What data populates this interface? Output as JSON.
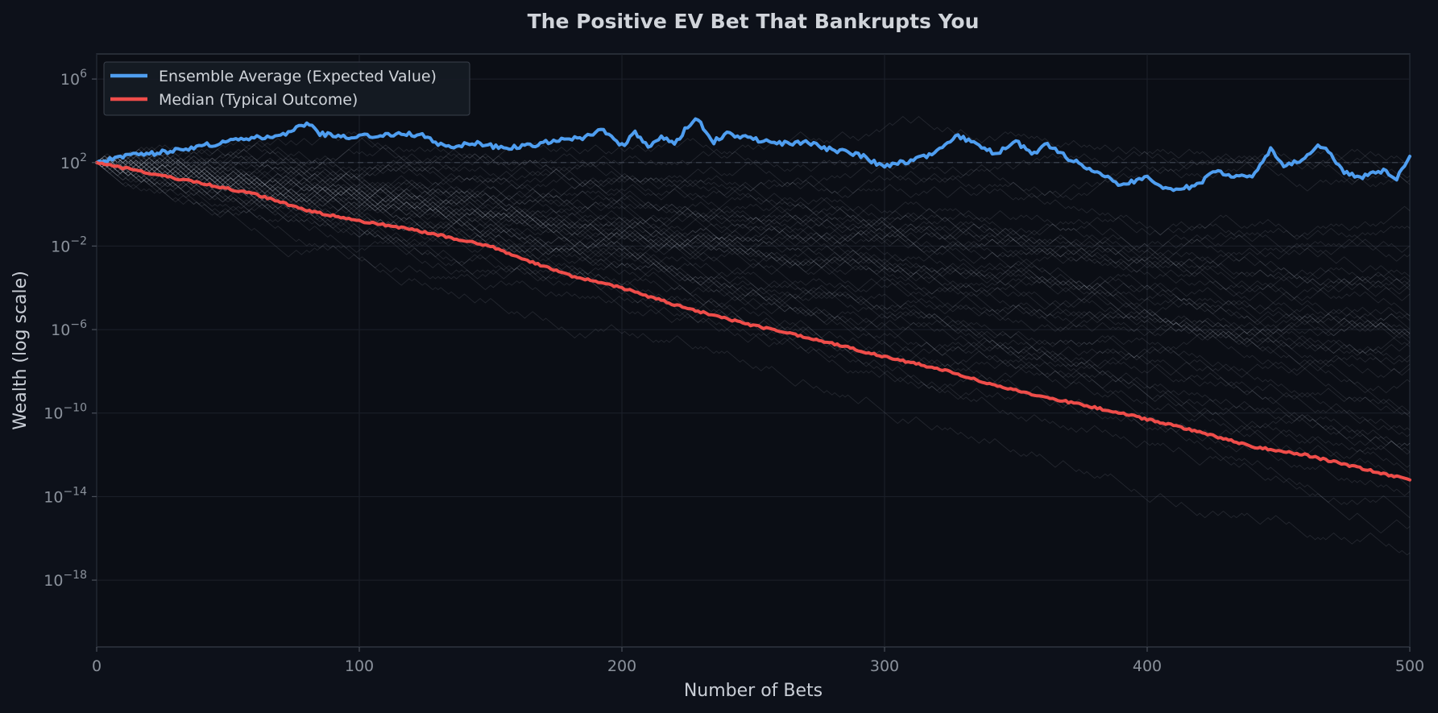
{
  "chart_data": {
    "type": "line",
    "title": "The Positive EV Bet That Bankrupts You",
    "xlabel": "Number of Bets",
    "ylabel": "Wealth (log scale)",
    "xlim": [
      0,
      500
    ],
    "ylim_log10": [
      -21.2,
      7.2
    ],
    "y_scale": "log",
    "x_ticks": [
      0,
      100,
      200,
      300,
      400,
      500
    ],
    "y_ticks": [
      {
        "base": "10",
        "exp": "6",
        "value": 1000000.0
      },
      {
        "base": "10",
        "exp": "2",
        "value": 100.0
      },
      {
        "base": "10",
        "exp": "−2",
        "value": 0.01
      },
      {
        "base": "10",
        "exp": "−6",
        "value": 1e-06
      },
      {
        "base": "10",
        "exp": "−10",
        "value": 1e-10
      },
      {
        "base": "10",
        "exp": "−14",
        "value": 1e-14
      },
      {
        "base": "10",
        "exp": "−18",
        "value": 1e-18
      }
    ],
    "grid": true,
    "legend_position": "top-left",
    "reference_line": {
      "y": 100,
      "style": "dashed"
    },
    "background_paths": {
      "count": 48,
      "start_wealth": 100,
      "steps": 500,
      "color": "#a0a6b0"
    },
    "series": [
      {
        "name": "Ensemble Average (Expected Value)",
        "color": "#4f9ef0",
        "points_log10": [
          [
            0,
            2.0
          ],
          [
            10,
            2.3
          ],
          [
            20,
            2.4
          ],
          [
            30,
            2.6
          ],
          [
            40,
            2.8
          ],
          [
            50,
            3.0
          ],
          [
            60,
            3.2
          ],
          [
            70,
            3.3
          ],
          [
            80,
            3.9
          ],
          [
            85,
            3.4
          ],
          [
            95,
            3.2
          ],
          [
            105,
            3.3
          ],
          [
            115,
            3.4
          ],
          [
            125,
            3.3
          ],
          [
            130,
            2.9
          ],
          [
            135,
            2.8
          ],
          [
            145,
            2.9
          ],
          [
            155,
            2.7
          ],
          [
            165,
            2.8
          ],
          [
            175,
            3.1
          ],
          [
            185,
            3.2
          ],
          [
            192,
            3.6
          ],
          [
            200,
            2.8
          ],
          [
            205,
            3.4
          ],
          [
            210,
            2.8
          ],
          [
            215,
            3.2
          ],
          [
            220,
            2.9
          ],
          [
            228,
            4.2
          ],
          [
            235,
            3.0
          ],
          [
            240,
            3.4
          ],
          [
            250,
            3.1
          ],
          [
            260,
            2.9
          ],
          [
            270,
            3.0
          ],
          [
            280,
            2.6
          ],
          [
            290,
            2.4
          ],
          [
            300,
            1.8
          ],
          [
            310,
            2.1
          ],
          [
            320,
            2.5
          ],
          [
            328,
            3.3
          ],
          [
            335,
            2.9
          ],
          [
            342,
            2.4
          ],
          [
            350,
            3.0
          ],
          [
            356,
            2.4
          ],
          [
            362,
            2.9
          ],
          [
            370,
            2.2
          ],
          [
            380,
            1.6
          ],
          [
            390,
            0.9
          ],
          [
            400,
            1.3
          ],
          [
            408,
            0.7
          ],
          [
            415,
            0.8
          ],
          [
            420,
            1.0
          ],
          [
            425,
            1.6
          ],
          [
            435,
            1.3
          ],
          [
            440,
            1.4
          ],
          [
            447,
            2.6
          ],
          [
            452,
            1.8
          ],
          [
            460,
            2.2
          ],
          [
            465,
            2.9
          ],
          [
            470,
            2.4
          ],
          [
            475,
            1.5
          ],
          [
            482,
            1.3
          ],
          [
            490,
            1.6
          ],
          [
            495,
            1.2
          ],
          [
            500,
            2.3
          ]
        ]
      },
      {
        "name": "Median (Typical Outcome)",
        "color": "#ef4d4a",
        "points_log10": [
          [
            0,
            2.0
          ],
          [
            40,
            1.0
          ],
          [
            60,
            0.5
          ],
          [
            80,
            -0.3
          ],
          [
            100,
            -0.8
          ],
          [
            120,
            -1.2
          ],
          [
            150,
            -2.0
          ],
          [
            160,
            -2.5
          ],
          [
            180,
            -3.4
          ],
          [
            200,
            -4.0
          ],
          [
            225,
            -5.0
          ],
          [
            250,
            -5.8
          ],
          [
            275,
            -6.5
          ],
          [
            300,
            -7.3
          ],
          [
            325,
            -8.0
          ],
          [
            340,
            -8.6
          ],
          [
            350,
            -8.9
          ],
          [
            360,
            -9.2
          ],
          [
            375,
            -9.6
          ],
          [
            390,
            -10.0
          ],
          [
            400,
            -10.3
          ],
          [
            420,
            -10.9
          ],
          [
            440,
            -11.6
          ],
          [
            460,
            -12.0
          ],
          [
            480,
            -12.6
          ],
          [
            490,
            -12.9
          ],
          [
            500,
            -13.2
          ]
        ]
      }
    ]
  }
}
